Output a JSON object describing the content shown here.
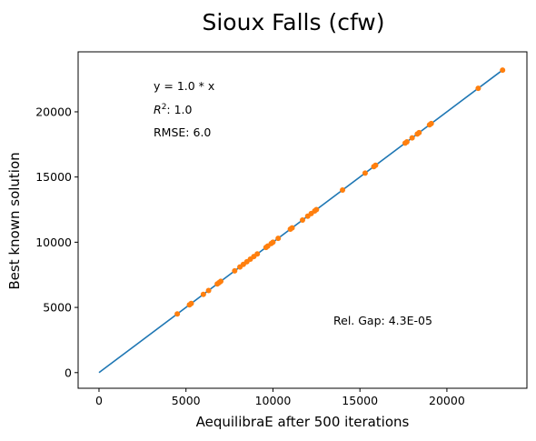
{
  "chart_data": {
    "type": "scatter",
    "title": "Sioux Falls (cfw)",
    "xlabel": "AequilibraE after 500 iterations",
    "ylabel": "Best known solution",
    "xlim": [
      -1200,
      24600
    ],
    "ylim": [
      -1200,
      24600
    ],
    "xticks": [
      0,
      5000,
      10000,
      15000,
      20000
    ],
    "yticks": [
      0,
      5000,
      10000,
      15000,
      20000
    ],
    "x_tick_labels": [
      "0",
      "5000",
      "10000",
      "15000",
      "20000"
    ],
    "y_tick_labels": [
      "0",
      "5000",
      "10000",
      "15000",
      "20000"
    ],
    "grid": false,
    "annotations": {
      "equation": "y = 1.0 * x",
      "r2_label": "R",
      "r2_superscript": "2",
      "r2_value": ":  1.0",
      "rmse": "RMSE: 6.0",
      "rel_gap": "Rel. Gap: 4.3E-05"
    },
    "series": [
      {
        "type": "line",
        "color": "#1f77b4",
        "x": [
          0,
          23200
        ],
        "y": [
          0,
          23200
        ]
      },
      {
        "type": "scatter",
        "color": "#ff7f0e",
        "x": [
          4500,
          5200,
          5300,
          6000,
          6300,
          6800,
          6900,
          7000,
          7800,
          8100,
          8300,
          8500,
          8700,
          8900,
          9100,
          9600,
          9700,
          9900,
          10000,
          10300,
          11000,
          11100,
          11700,
          12000,
          12200,
          12400,
          12500,
          14000,
          15300,
          15800,
          15900,
          17600,
          17700,
          18000,
          18300,
          18400,
          19000,
          19100,
          21800,
          23200
        ],
        "y": [
          4500,
          5200,
          5300,
          6000,
          6300,
          6800,
          6900,
          7000,
          7800,
          8100,
          8300,
          8500,
          8700,
          8900,
          9100,
          9600,
          9700,
          9900,
          10000,
          10300,
          11000,
          11100,
          11700,
          12000,
          12200,
          12400,
          12500,
          14000,
          15300,
          15800,
          15900,
          17600,
          17700,
          18000,
          18300,
          18400,
          19000,
          19100,
          21800,
          23200
        ]
      }
    ]
  }
}
